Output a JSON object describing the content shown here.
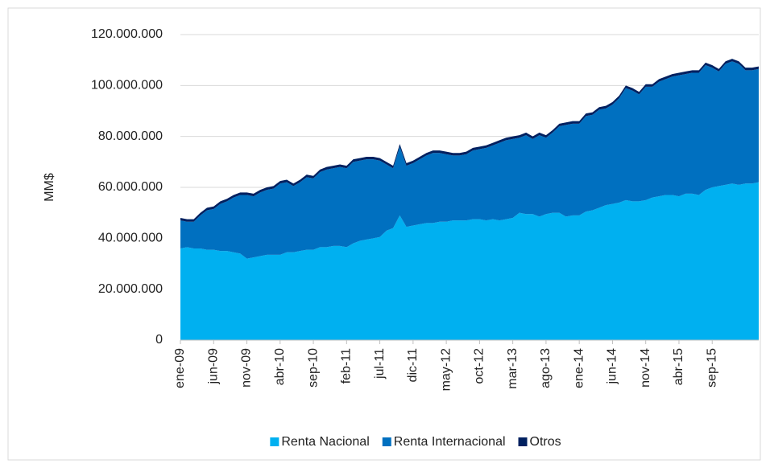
{
  "chart_data": {
    "type": "area",
    "stacked": true,
    "ylabel": "MM$",
    "categories": [
      "ene-09",
      null,
      null,
      null,
      null,
      "jun-09",
      null,
      null,
      null,
      null,
      "nov-09",
      null,
      null,
      null,
      null,
      "abr-10",
      null,
      null,
      null,
      null,
      "sep-10",
      null,
      null,
      null,
      null,
      "feb-11",
      null,
      null,
      null,
      null,
      "jul-11",
      null,
      null,
      null,
      null,
      "dic-11",
      null,
      null,
      null,
      null,
      "may-12",
      null,
      null,
      null,
      null,
      "oct-12",
      null,
      null,
      null,
      null,
      "mar-13",
      null,
      null,
      null,
      null,
      "ago-13",
      null,
      null,
      null,
      null,
      "ene-14",
      null,
      null,
      null,
      null,
      "jun-14",
      null,
      null,
      null,
      null,
      "nov-14",
      null,
      null,
      null,
      null,
      "abr-15",
      null,
      null,
      null,
      null,
      "sep-15",
      null,
      null,
      null,
      null,
      null,
      null,
      null
    ],
    "series": [
      {
        "name": "Renta Nacional",
        "color": "#00b0f0",
        "values": [
          36000000,
          36500000,
          36000000,
          36000000,
          35500000,
          35500000,
          35000000,
          35000000,
          34500000,
          34000000,
          32000000,
          32500000,
          33000000,
          33500000,
          33500000,
          33500000,
          34500000,
          34500000,
          35000000,
          35500000,
          35500000,
          36500000,
          36500000,
          37000000,
          37000000,
          36500000,
          38000000,
          39000000,
          39500000,
          40000000,
          40500000,
          43000000,
          44000000,
          49000000,
          44500000,
          45000000,
          45500000,
          46000000,
          46000000,
          46500000,
          46500000,
          47000000,
          47000000,
          47000000,
          47500000,
          47500000,
          47000000,
          47500000,
          47000000,
          47500000,
          48000000,
          50000000,
          49500000,
          49500000,
          48500000,
          49500000,
          50000000,
          50000000,
          48500000,
          49000000,
          49000000,
          50500000,
          51000000,
          52000000,
          53000000,
          53500000,
          54000000,
          55000000,
          54500000,
          54500000,
          55000000,
          56000000,
          56500000,
          57000000,
          57000000,
          56500000,
          57500000,
          57500000,
          57000000,
          59000000,
          60000000,
          60500000,
          61000000,
          61500000,
          61000000,
          61500000,
          61500000,
          62000000
        ]
      },
      {
        "name": "Renta Internacional",
        "color": "#0070c0",
        "values": [
          11000000,
          10000000,
          10500000,
          13000000,
          15500000,
          16000000,
          18500000,
          19500000,
          21500000,
          23000000,
          25000000,
          24000000,
          25000000,
          25500000,
          26000000,
          28000000,
          27500000,
          26000000,
          27000000,
          28500000,
          28000000,
          29500000,
          30500000,
          30500000,
          31000000,
          31000000,
          32000000,
          31500000,
          31500000,
          31000000,
          30000000,
          26000000,
          23500000,
          27000000,
          24000000,
          24500000,
          25500000,
          26500000,
          27500000,
          27000000,
          26500000,
          25500000,
          25500000,
          26000000,
          27000000,
          27500000,
          28500000,
          29000000,
          30500000,
          31000000,
          31000000,
          29500000,
          31000000,
          29500000,
          32000000,
          30000000,
          31500000,
          34000000,
          36000000,
          36000000,
          36000000,
          37500000,
          37500000,
          38500000,
          38000000,
          39000000,
          41000000,
          44000000,
          43500000,
          42000000,
          44500000,
          43500000,
          45000000,
          45500000,
          46500000,
          47500000,
          47000000,
          47500000,
          48000000,
          49000000,
          47000000,
          45000000,
          47500000,
          48000000,
          47500000,
          44500000,
          44500000,
          44500000
        ]
      },
      {
        "name": "Otros",
        "color": "#002060",
        "values": [
          1000000,
          1000000,
          1000000,
          1000000,
          1000000,
          1000000,
          1000000,
          1000000,
          1000000,
          1000000,
          1000000,
          1000000,
          1000000,
          1000000,
          1000000,
          1000000,
          1000000,
          1000000,
          1000000,
          1000000,
          1000000,
          1000000,
          1000000,
          1000000,
          1000000,
          1000000,
          1000000,
          1000000,
          1000000,
          1000000,
          1000000,
          1000000,
          1000000,
          1000000,
          1000000,
          1000000,
          1000000,
          1000000,
          1000000,
          1000000,
          1000000,
          1000000,
          1000000,
          1000000,
          1000000,
          1000000,
          1000000,
          1000000,
          1000000,
          1000000,
          1000000,
          1000000,
          1000000,
          1000000,
          1000000,
          1000000,
          1000000,
          1000000,
          1000000,
          1000000,
          1000000,
          1000000,
          1000000,
          1000000,
          1000000,
          1000000,
          1000000,
          1000000,
          1000000,
          1000000,
          1000000,
          1000000,
          1000000,
          1000000,
          1000000,
          1000000,
          1000000,
          1000000,
          1000000,
          1000000,
          1000000,
          1000000,
          1000000,
          1000000,
          1000000,
          1000000,
          1000000,
          1000000
        ]
      }
    ],
    "ylim": [
      0,
      120000000
    ],
    "yticks": [
      0,
      {
        "value": 20000000,
        "label": "20.000.000"
      },
      {
        "value": 40000000,
        "label": "40.000.000"
      },
      {
        "value": 60000000,
        "label": "60.000.000"
      },
      {
        "value": 80000000,
        "label": "80.000.000"
      },
      {
        "value": 100000000,
        "label": "100.000.000"
      },
      {
        "value": 120000000,
        "label": "120.000.000"
      }
    ],
    "grid": true,
    "legend": "bottom"
  }
}
